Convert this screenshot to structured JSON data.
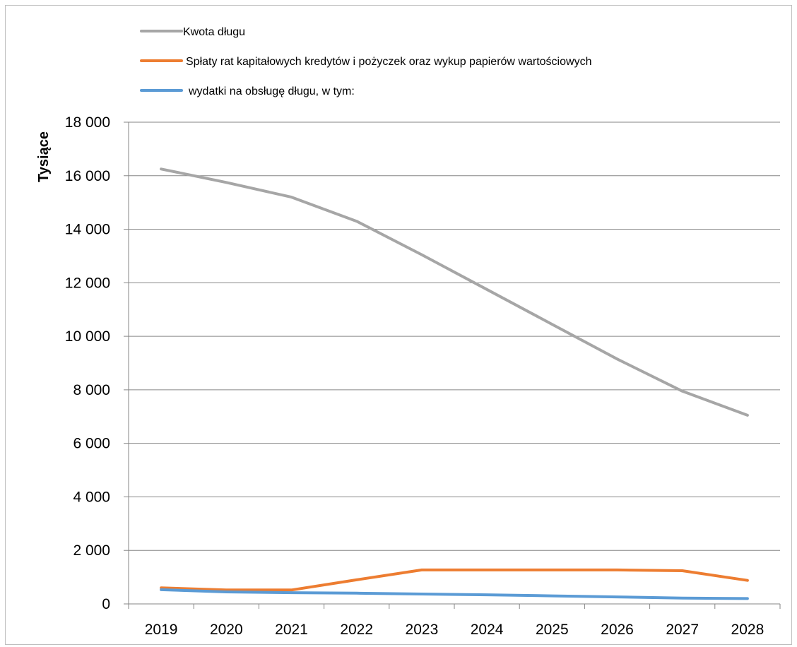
{
  "chart_data": {
    "type": "line",
    "title": "",
    "xlabel": "",
    "ylabel": "Tysiące",
    "ylim": [
      0,
      18000
    ],
    "yticks": [
      0,
      2000,
      4000,
      6000,
      8000,
      10000,
      12000,
      14000,
      16000,
      18000
    ],
    "ytick_labels": [
      "0",
      "2 000",
      "4 000",
      "6 000",
      "8 000",
      "10 000",
      "12 000",
      "14 000",
      "16 000",
      "18 000"
    ],
    "categories": [
      "2019",
      "2020",
      "2021",
      "2022",
      "2023",
      "2024",
      "2025",
      "2026",
      "2027",
      "2028"
    ],
    "grid": true,
    "legend_position": "top-left",
    "series": [
      {
        "name": "Kwota długu",
        "color": "#a6a6a6",
        "values": [
          16250,
          15750,
          15200,
          14300,
          13050,
          11750,
          10450,
          9150,
          7950,
          7050
        ]
      },
      {
        "name": "Spłaty rat kapitałowych kredytów i pożyczek oraz wykup papierów wartościowych",
        "color": "#ed7d31",
        "values": [
          600,
          520,
          520,
          900,
          1270,
          1270,
          1270,
          1270,
          1240,
          880
        ]
      },
      {
        "name": "wydatki na obsługę długu, w tym:",
        "color": "#5b9bd5",
        "values": [
          530,
          450,
          420,
          400,
          370,
          340,
          300,
          260,
          220,
          200
        ]
      }
    ]
  }
}
